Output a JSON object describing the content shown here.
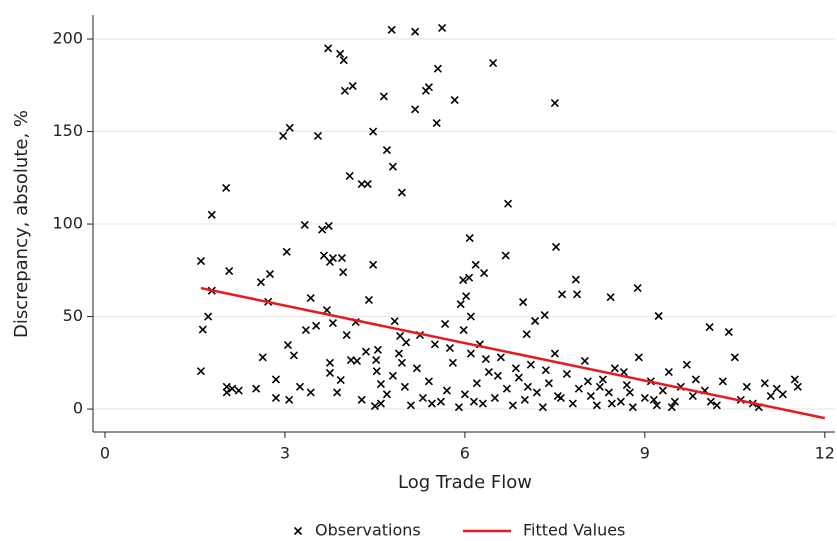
{
  "chart_data": {
    "type": "scatter",
    "x_label": "Log Trade Flow",
    "y_label": "Discrepancy, absolute, %",
    "xlim": [
      -0.2,
      12.17
    ],
    "ylim": [
      -12.4,
      213
    ],
    "xticks": [
      0,
      3,
      6,
      9,
      12
    ],
    "yticks": [
      0,
      50,
      100,
      150,
      200
    ],
    "grid": true,
    "legend": "bottom",
    "series": [
      {
        "name": "Observations",
        "type": "scatter",
        "color": "#000000",
        "x": [
          1.6,
          1.78,
          2.02,
          1.63,
          1.72,
          1.78,
          1.6,
          2.07,
          2.03,
          2.12,
          2.23,
          2.03,
          2.6,
          2.75,
          2.52,
          2.63,
          2.72,
          2.85,
          2.85,
          2.97,
          3.08,
          3.03,
          3.05,
          3.07,
          3.15,
          3.25,
          3.33,
          3.35,
          3.43,
          3.43,
          3.52,
          3.55,
          3.62,
          3.65,
          3.7,
          3.72,
          3.73,
          3.75,
          3.8,
          3.75,
          3.75,
          3.8,
          3.87,
          3.92,
          3.98,
          3.95,
          3.97,
          4.0,
          4.13,
          3.93,
          4.03,
          4.1,
          4.08,
          4.18,
          4.2,
          4.28,
          4.38,
          4.28,
          4.35,
          4.4,
          4.47,
          4.47,
          4.5,
          4.52,
          4.53,
          4.6,
          4.65,
          4.7,
          4.8,
          4.78,
          4.83,
          4.95,
          4.92,
          5.02,
          5.17,
          5.17,
          5.35,
          5.4,
          5.55,
          5.62,
          5.53,
          5.83,
          6.47,
          6.08,
          6.18,
          6.07,
          6.32,
          5.97,
          6.02,
          5.93,
          5.67,
          5.98,
          6.1,
          6.72,
          6.68,
          7.5,
          7.52,
          7.62,
          7.85,
          7.87,
          8.43,
          8.88,
          9.23,
          10.08,
          10.4,
          6.97,
          7.17,
          7.03,
          7.33,
          4.6,
          4.7,
          4.8,
          4.9,
          5.0,
          5.1,
          5.2,
          5.3,
          5.4,
          5.5,
          5.6,
          5.7,
          5.8,
          5.9,
          6.0,
          6.1,
          6.2,
          6.3,
          6.4,
          6.5,
          6.6,
          6.7,
          6.8,
          6.9,
          7.0,
          7.1,
          7.2,
          7.3,
          7.4,
          7.5,
          7.6,
          7.7,
          7.8,
          7.9,
          8.0,
          8.1,
          8.2,
          8.3,
          8.4,
          8.5,
          8.6,
          8.7,
          8.8,
          8.9,
          9.0,
          9.1,
          9.2,
          9.3,
          9.4,
          9.5,
          9.6,
          9.7,
          9.8,
          10.0,
          10.2,
          10.3,
          10.5,
          10.6,
          10.7,
          10.8,
          11.0,
          11.2,
          11.3,
          11.5,
          11.55,
          6.15,
          6.55,
          7.05,
          7.55,
          8.05,
          8.45,
          8.65,
          9.15,
          9.45,
          5.25,
          5.75,
          6.35,
          6.85,
          4.55,
          4.95,
          5.45,
          6.25,
          7.35,
          8.25,
          8.75,
          9.85,
          10.1,
          10.9,
          11.1
        ],
        "values": [
          80,
          105,
          119.5,
          43,
          50,
          64,
          20.5,
          74.6,
          12,
          11,
          10,
          9,
          68.6,
          73,
          11,
          28,
          58,
          16,
          6,
          147.6,
          152,
          85,
          34.6,
          5,
          29,
          12,
          99.5,
          42.7,
          60,
          9,
          45,
          147.6,
          97,
          83,
          53.5,
          195,
          99,
          79.5,
          81.6,
          25,
          19.5,
          46.5,
          9,
          192,
          188.6,
          81.6,
          74,
          172,
          174.6,
          15.7,
          40,
          26.5,
          126,
          47,
          26,
          121.6,
          121.6,
          5,
          31,
          59,
          78,
          150,
          1.6,
          26.5,
          20.5,
          13.5,
          169,
          140,
          131,
          205,
          47.5,
          117,
          39.5,
          36,
          204,
          162,
          172,
          174,
          184,
          206,
          154.6,
          167,
          187,
          92.4,
          78,
          71,
          73.5,
          69.7,
          61,
          56.7,
          46,
          42.7,
          50,
          111,
          83,
          165.4,
          87.6,
          62,
          70,
          62,
          60.5,
          65.4,
          50.3,
          44.3,
          41.6,
          57.8,
          47.6,
          40.5,
          50.8,
          3,
          8,
          18,
          30,
          12,
          2,
          22,
          6,
          15,
          35,
          4,
          10,
          25,
          1,
          8,
          30,
          14,
          3,
          20,
          6,
          28,
          11,
          2,
          17,
          5,
          24,
          9,
          1,
          14,
          30,
          6,
          19,
          3,
          11,
          26,
          7,
          2,
          16,
          9,
          22,
          4,
          13,
          1,
          28,
          6,
          15,
          2,
          10,
          20,
          4,
          12,
          24,
          7,
          10,
          2,
          15,
          28,
          5,
          12,
          3,
          14,
          11,
          8,
          16,
          12,
          4,
          18,
          12,
          7,
          15,
          3,
          20,
          5,
          1,
          40,
          33,
          27,
          22,
          32,
          25,
          3,
          35,
          21,
          12,
          9,
          16,
          4,
          1,
          7
        ]
      },
      {
        "name": "Fitted Values",
        "type": "line",
        "color": "#e41a1c",
        "x": [
          1.6,
          12.0
        ],
        "values": [
          65.4,
          -4.9
        ]
      }
    ]
  }
}
